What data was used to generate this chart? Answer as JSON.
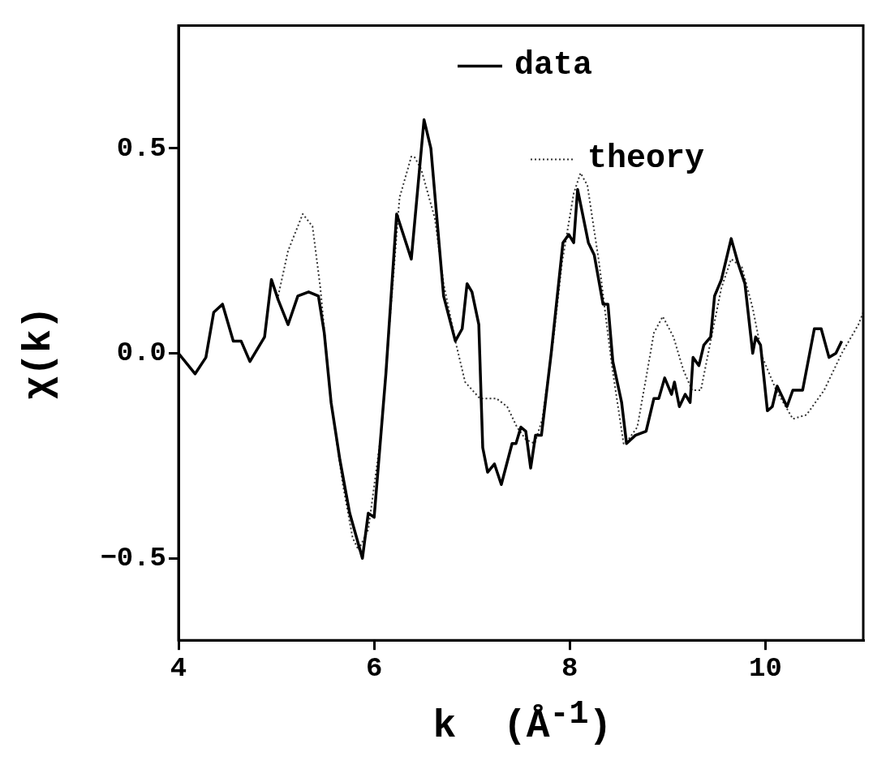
{
  "chart_data": {
    "type": "line",
    "xlabel": "k  (Å$^{-1}$)",
    "ylabel": "χ(k)",
    "xlim": [
      4,
      11
    ],
    "xticks": [
      4,
      6,
      8,
      10
    ],
    "ylim": [
      -0.7,
      0.8
    ],
    "yticks": [
      {
        "value": -0.5,
        "label": "−0.5"
      },
      {
        "value": 0,
        "label": "0.0"
      },
      0.5
    ],
    "grid": false,
    "legend": "top right",
    "marker": "none",
    "series": [
      {
        "name": "data",
        "color": "#000000",
        "line_style": "solid",
        "x": [
          4.0,
          4.17,
          4.28,
          4.36,
          4.45,
          4.56,
          4.64,
          4.73,
          4.88,
          4.95,
          5.02,
          5.12,
          5.22,
          5.33,
          5.43,
          5.49,
          5.56,
          5.65,
          5.75,
          5.88,
          5.94,
          6.0,
          6.12,
          6.23,
          6.38,
          6.51,
          6.58,
          6.71,
          6.83,
          6.9,
          6.95,
          7.0,
          7.07,
          7.11,
          7.16,
          7.23,
          7.3,
          7.41,
          7.45,
          7.5,
          7.55,
          7.6,
          7.65,
          7.71,
          7.81,
          7.93,
          7.99,
          8.04,
          8.08,
          8.19,
          8.25,
          8.34,
          8.39,
          8.44,
          8.53,
          8.58,
          8.67,
          8.78,
          8.86,
          8.91,
          8.97,
          9.04,
          9.07,
          9.12,
          9.18,
          9.23,
          9.26,
          9.32,
          9.37,
          9.44,
          9.48,
          9.55,
          9.65,
          9.72,
          9.79,
          9.87,
          9.9,
          9.95,
          10.02,
          10.07,
          10.12,
          10.22,
          10.28,
          10.38,
          10.5,
          10.57,
          10.65,
          10.72,
          10.78
        ],
        "values": [
          0.0,
          -0.05,
          -0.01,
          0.1,
          0.12,
          0.03,
          0.03,
          -0.02,
          0.04,
          0.18,
          0.13,
          0.07,
          0.14,
          0.15,
          0.14,
          0.05,
          -0.12,
          -0.26,
          -0.39,
          -0.5,
          -0.39,
          -0.4,
          -0.05,
          0.34,
          0.23,
          0.57,
          0.5,
          0.14,
          0.03,
          0.06,
          0.17,
          0.15,
          0.07,
          -0.23,
          -0.29,
          -0.27,
          -0.32,
          -0.22,
          -0.22,
          -0.18,
          -0.19,
          -0.28,
          -0.2,
          -0.2,
          0.0,
          0.27,
          0.29,
          0.27,
          0.4,
          0.27,
          0.24,
          0.12,
          0.12,
          -0.02,
          -0.12,
          -0.22,
          -0.2,
          -0.19,
          -0.11,
          -0.11,
          -0.06,
          -0.1,
          -0.07,
          -0.13,
          -0.1,
          -0.12,
          -0.01,
          -0.03,
          0.02,
          0.04,
          0.14,
          0.18,
          0.28,
          0.22,
          0.17,
          0.0,
          0.04,
          0.02,
          -0.14,
          -0.13,
          -0.08,
          -0.13,
          -0.09,
          -0.09,
          0.06,
          0.06,
          -0.01,
          0.0,
          0.03
        ]
      },
      {
        "name": "theory",
        "color": "#333333",
        "line_style": "dotted",
        "x": [
          5.01,
          5.12,
          5.27,
          5.37,
          5.45,
          5.56,
          5.68,
          5.78,
          5.84,
          5.94,
          6.07,
          6.17,
          6.26,
          6.38,
          6.41,
          6.48,
          6.62,
          6.71,
          6.83,
          6.93,
          7.08,
          7.25,
          7.36,
          7.46,
          7.55,
          7.64,
          7.72,
          7.83,
          7.92,
          8.04,
          8.11,
          8.18,
          8.3,
          8.43,
          8.55,
          8.6,
          8.69,
          8.78,
          8.86,
          8.95,
          9.06,
          9.16,
          9.25,
          9.34,
          9.44,
          9.55,
          9.65,
          9.76,
          9.87,
          9.97,
          10.11,
          10.28,
          10.42,
          10.6,
          10.78,
          10.95,
          11.0
        ],
        "values": [
          0.13,
          0.25,
          0.34,
          0.31,
          0.16,
          -0.12,
          -0.32,
          -0.45,
          -0.48,
          -0.43,
          -0.2,
          0.11,
          0.38,
          0.48,
          0.48,
          0.45,
          0.33,
          0.17,
          0.03,
          -0.07,
          -0.11,
          -0.11,
          -0.13,
          -0.18,
          -0.21,
          -0.22,
          -0.16,
          0.03,
          0.22,
          0.39,
          0.44,
          0.41,
          0.22,
          -0.03,
          -0.22,
          -0.21,
          -0.18,
          -0.06,
          0.05,
          0.09,
          0.04,
          -0.04,
          -0.09,
          -0.09,
          0.03,
          0.16,
          0.23,
          0.21,
          0.11,
          -0.01,
          -0.09,
          -0.16,
          -0.15,
          -0.09,
          0.0,
          0.07,
          0.1
        ]
      }
    ]
  }
}
